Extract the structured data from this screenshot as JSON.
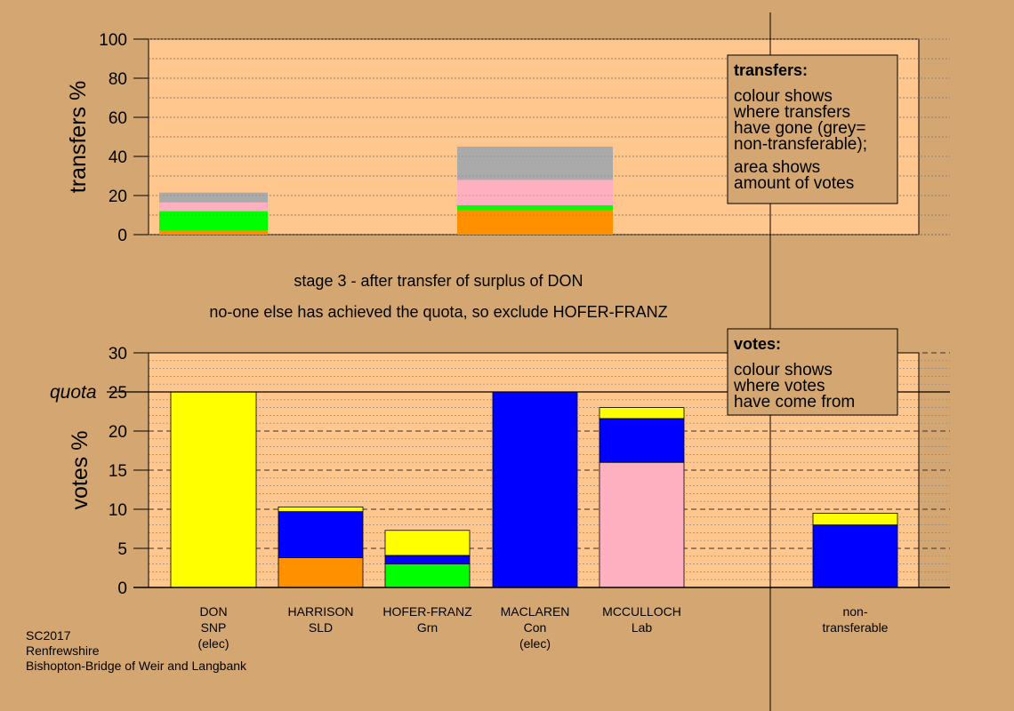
{
  "colors": {
    "background": "#d4a772",
    "plot_bg": "#ffc68e",
    "legend_bg": "#d4a772",
    "SNP": "#ffff00",
    "Con": "#0000ff",
    "Lab": "#ffb0c0",
    "SLD": "#ff9000",
    "Grn": "#00ff00",
    "non-transferable": "#aaaaaa"
  },
  "stage": {
    "line1": "stage 3 - after transfer of surplus of DON",
    "line2": "no-one else has achieved the quota, so exclude HOFER-FRANZ"
  },
  "footer": {
    "line1": "SC2017",
    "line2": "Renfrewshire",
    "line3": "Bishopton-Bridge of Weir and Langbank"
  },
  "legend_transfers": {
    "title": "transfers:",
    "lines": [
      "colour shows",
      "where transfers",
      "have gone (grey=",
      "non-transferable);",
      "area shows",
      "amount of votes"
    ]
  },
  "legend_votes": {
    "title": "votes:",
    "lines": [
      "colour shows",
      "where votes",
      "have come from"
    ]
  },
  "chart_data": [
    {
      "type": "bar",
      "stacked": true,
      "ylabel": "transfers %",
      "ylim": [
        0,
        100
      ],
      "yticks": [
        "0",
        "20",
        "40",
        "60",
        "80",
        "100"
      ],
      "bars": [
        {
          "column": "HARRISON",
          "segments": [
            {
              "party": "SLD",
              "value": 2
            },
            {
              "party": "Grn",
              "value": 10
            },
            {
              "party": "Lab",
              "value": 4.5
            },
            {
              "party": "non-transferable",
              "value": 5
            }
          ]
        },
        {
          "column": "MACLAREN",
          "segments": [
            {
              "party": "SLD",
              "value": 12.5
            },
            {
              "party": "Grn",
              "value": 2.5
            },
            {
              "party": "Lab",
              "value": 13
            },
            {
              "party": "non-transferable",
              "value": 17
            }
          ]
        }
      ]
    },
    {
      "type": "bar",
      "stacked": true,
      "ylabel": "votes %",
      "ylim": [
        0,
        30
      ],
      "yticks": [
        "0",
        "5",
        "10",
        "15",
        "20",
        "25",
        "30"
      ],
      "quota": {
        "label": "quota",
        "value": 25
      },
      "candidates": [
        {
          "name": "DON",
          "party": "SNP",
          "note": "(elec)",
          "segments": [
            {
              "party": "SNP",
              "value": 25
            }
          ]
        },
        {
          "name": "HARRISON",
          "party": "SLD",
          "note": "",
          "segments": [
            {
              "party": "SLD",
              "value": 3.8
            },
            {
              "party": "Con",
              "value": 5.9
            },
            {
              "party": "SNP",
              "value": 0.6
            }
          ]
        },
        {
          "name": "HOFER-FRANZ",
          "party": "Grn",
          "note": "",
          "segments": [
            {
              "party": "Grn",
              "value": 3.0
            },
            {
              "party": "Con",
              "value": 1.1
            },
            {
              "party": "SNP",
              "value": 3.2
            }
          ]
        },
        {
          "name": "MACLAREN",
          "party": "Con",
          "note": "(elec)",
          "segments": [
            {
              "party": "Con",
              "value": 25
            }
          ]
        },
        {
          "name": "MCCULLOCH",
          "party": "Lab",
          "note": "",
          "segments": [
            {
              "party": "Lab",
              "value": 16
            },
            {
              "party": "Con",
              "value": 5.6
            },
            {
              "party": "SNP",
              "value": 1.4
            }
          ]
        },
        {
          "name": "non-",
          "party": "transferable",
          "note": "",
          "segments": [
            {
              "party": "Con",
              "value": 8.0
            },
            {
              "party": "SNP",
              "value": 1.5
            }
          ]
        }
      ]
    }
  ]
}
